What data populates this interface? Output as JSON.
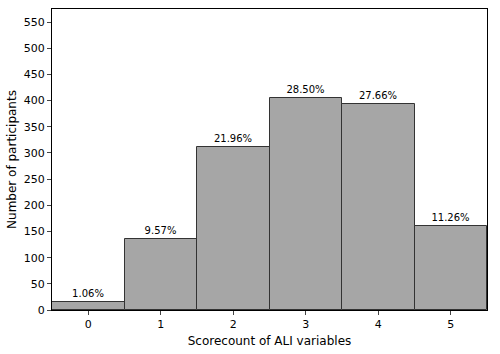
{
  "chart_data": {
    "type": "bar",
    "x_label": "Scorecount of ALI variables",
    "y_label": "Number of participants",
    "categories": [
      "0",
      "1",
      "2",
      "3",
      "4",
      "5"
    ],
    "values": [
      15,
      136,
      312,
      405,
      393,
      160
    ],
    "bar_labels": [
      "1.06%",
      "9.57%",
      "21.96%",
      "28.50%",
      "27.66%",
      "11.26%"
    ],
    "color": "#a6a6a6",
    "ylim": [
      0,
      575
    ],
    "yticks": [
      0,
      50,
      100,
      150,
      200,
      250,
      300,
      350,
      400,
      450,
      500,
      550
    ],
    "grid": false
  }
}
